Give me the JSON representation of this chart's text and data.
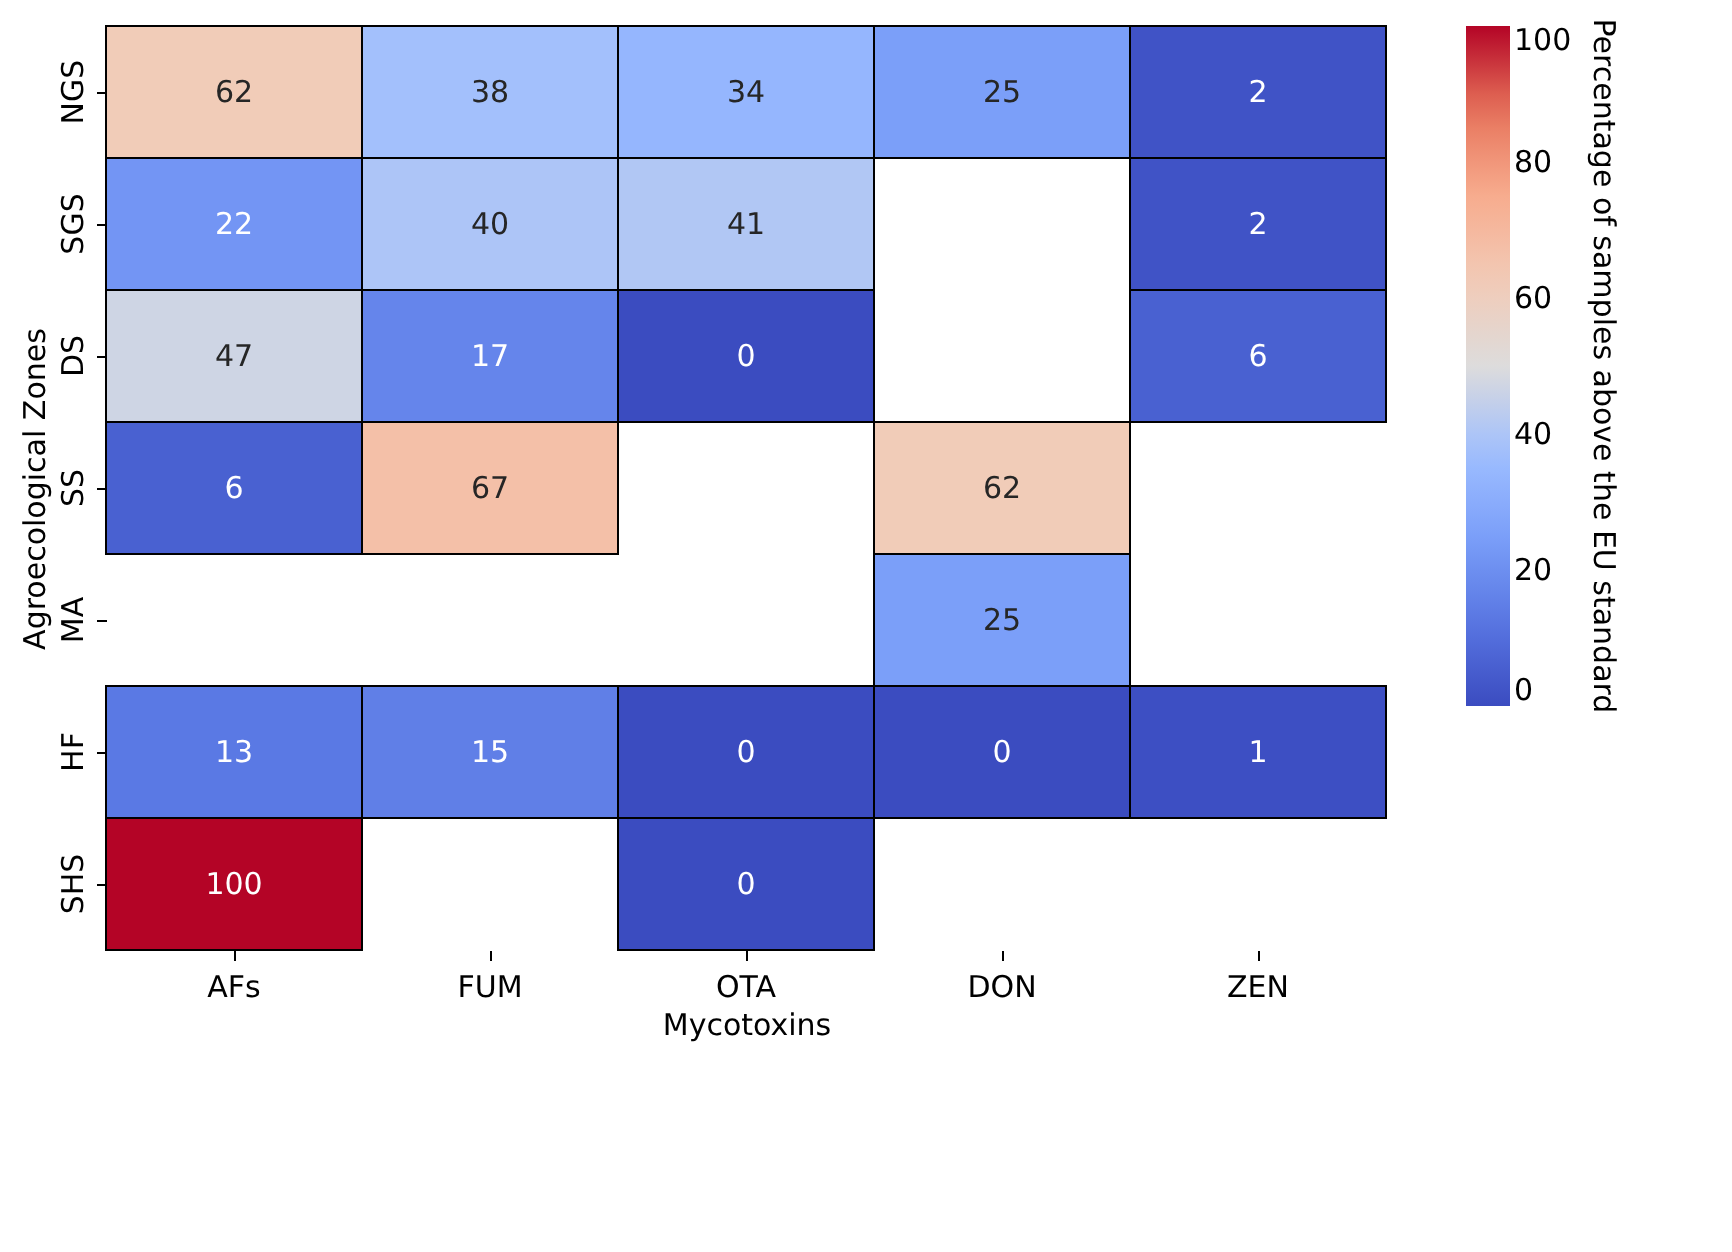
{
  "chart_data": {
    "type": "heatmap",
    "xlabel": "Mycotoxins",
    "ylabel": "Agroecological Zones",
    "clabel": "Percentage of samples above the EU standard",
    "categories": [
      "AFs",
      "FUM",
      "OTA",
      "DON",
      "ZEN"
    ],
    "y_categories": [
      "NGS",
      "SGS",
      "DS",
      "SS",
      "MA",
      "HF",
      "SHS"
    ],
    "cells": [
      [
        62,
        38,
        34,
        25,
        2
      ],
      [
        22,
        40,
        41,
        null,
        2
      ],
      [
        47,
        17,
        0,
        null,
        6
      ],
      [
        6,
        67,
        null,
        62,
        null
      ],
      [
        null,
        null,
        null,
        25,
        null
      ],
      [
        13,
        15,
        0,
        0,
        1
      ],
      [
        100,
        null,
        0,
        null,
        null
      ]
    ],
    "clim": [
      0,
      100
    ],
    "cticks": [
      0,
      20,
      40,
      60,
      80,
      100
    ],
    "data_labels": true
  }
}
